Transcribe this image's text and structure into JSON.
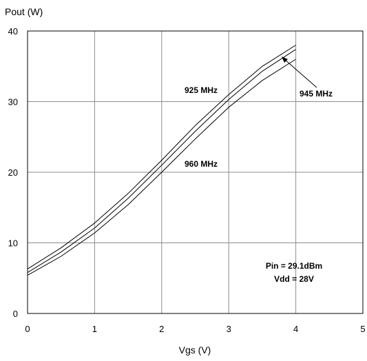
{
  "chart_data": {
    "type": "line",
    "xlabel": "Vgs (V)",
    "ylabel": "Pout (W)",
    "xlim": [
      0,
      5
    ],
    "ylim": [
      0,
      40
    ],
    "x_ticks": [
      "0",
      "1",
      "2",
      "3",
      "4",
      "5"
    ],
    "y_ticks": [
      "0",
      "10",
      "20",
      "30",
      "40"
    ],
    "grid": true,
    "series": [
      {
        "name": "925 MHz",
        "x": [
          0,
          0.5,
          1,
          1.5,
          2,
          2.5,
          3,
          3.5,
          4
        ],
        "y": [
          6.3,
          9.3,
          12.8,
          17.0,
          21.7,
          26.6,
          31.0,
          35.0,
          38.0
        ]
      },
      {
        "name": "945 MHz",
        "x": [
          0,
          0.5,
          1,
          1.5,
          2,
          2.5,
          3,
          3.5,
          4
        ],
        "y": [
          5.8,
          8.7,
          12.1,
          16.3,
          21.0,
          25.8,
          30.3,
          34.3,
          37.4
        ]
      },
      {
        "name": "960 MHz",
        "x": [
          0,
          0.5,
          1,
          1.5,
          2,
          2.5,
          3,
          3.5,
          4
        ],
        "y": [
          5.4,
          8.1,
          11.4,
          15.4,
          20.0,
          24.7,
          29.2,
          33.0,
          36.0
        ]
      }
    ],
    "annotations": [
      "925 MHz",
      "945 MHz",
      "960 MHz",
      "Pin = 29.1dBm",
      "Vdd = 28V"
    ]
  }
}
